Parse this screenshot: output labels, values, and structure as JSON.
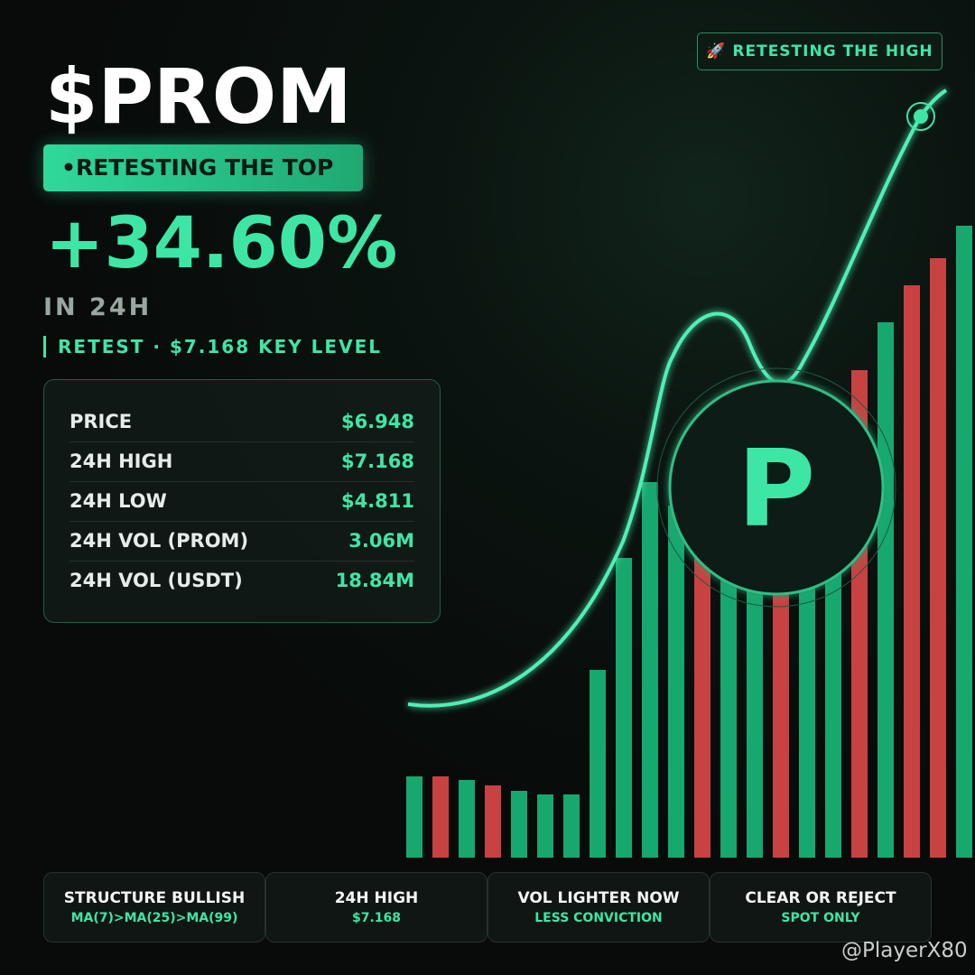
{
  "header": {
    "ticker": "$PROM",
    "badge": "•RETESTING THE TOP",
    "change": "+34.60%",
    "period": "IN 24H",
    "note": "RETEST · $7.168 KEY LEVEL"
  },
  "tag": "🚀 RETESTING THE HIGH",
  "coin": "P",
  "stats": [
    [
      "PRICE",
      "$6.948"
    ],
    [
      "24H HIGH",
      "$7.168"
    ],
    [
      "24H LOW",
      "$4.811"
    ],
    [
      "24H VOL (PROM)",
      "3.06M"
    ],
    [
      "24H VOL (USDT)",
      "18.84M"
    ]
  ],
  "cards": [
    {
      "title": "STRUCTURE BULLISH",
      "sub": "MA(7)>MA(25)>MA(99)"
    },
    {
      "title": "24H HIGH",
      "sub": "$7.168"
    },
    {
      "title": "VOL LIGHTER NOW",
      "sub": "LESS CONVICTION"
    },
    {
      "title": "CLEAR OR REJECT",
      "sub": "SPOT ONLY"
    }
  ],
  "handle": "@PlayerX80"
}
